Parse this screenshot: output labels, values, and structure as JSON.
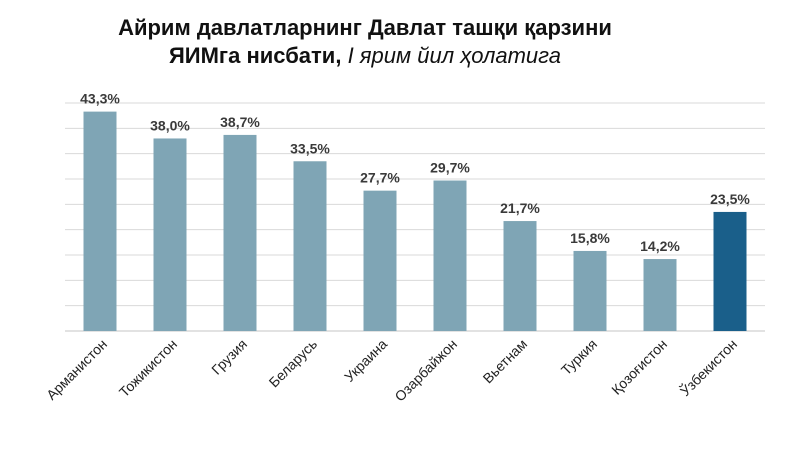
{
  "title_main": "Айрим давлатларнинг Давлат ташқи қарзини",
  "title_line2": "ЯИМга нисбати,",
  "title_italic": "I ярим йил ҳолатига",
  "chart_data": {
    "type": "bar",
    "categories": [
      "Арманистон",
      "Тожикистон",
      "Грузия",
      "Беларусь",
      "Украина",
      "Озарбайжон",
      "Вьетнам",
      "Туркия",
      "Қозоғистон",
      "Ўзбекистон"
    ],
    "values": [
      43.3,
      38.0,
      38.7,
      33.5,
      27.7,
      29.7,
      21.7,
      15.8,
      14.2,
      23.5
    ],
    "value_labels": [
      "43,3%",
      "38,0%",
      "38,7%",
      "33,5%",
      "27,7%",
      "29,7%",
      "21,7%",
      "15,8%",
      "14,2%",
      "23,5%"
    ],
    "ylim": [
      0,
      45
    ],
    "grid": true,
    "colors": {
      "default": "#7fa5b5",
      "highlight": "#1a5f8a",
      "grid": "#d9d9d9"
    },
    "highlight_index": 9
  }
}
